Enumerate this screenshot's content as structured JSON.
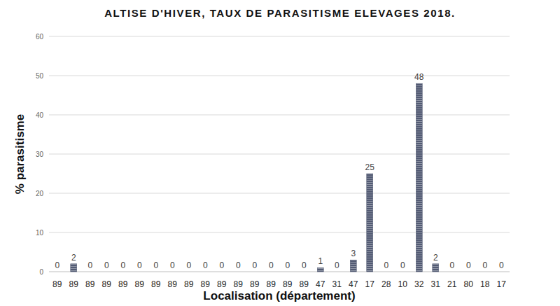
{
  "chart_data": {
    "type": "bar",
    "title": "ALTISE D'HIVER, TAUX DE PARASITISME ELEVAGES 2018.",
    "x_label": "Localisation (département)",
    "y_label": "% parasitisme",
    "categories": [
      "89",
      "89",
      "89",
      "89",
      "89",
      "89",
      "89",
      "89",
      "89",
      "89",
      "89",
      "89",
      "89",
      "89",
      "89",
      "89",
      "47",
      "31",
      "47",
      "17",
      "28",
      "10",
      "32",
      "31",
      "21",
      "80",
      "18",
      "17"
    ],
    "values": [
      0,
      2,
      0,
      0,
      0,
      0,
      0,
      0,
      0,
      0,
      0,
      0,
      0,
      0,
      0,
      0,
      1,
      0,
      3,
      25,
      0,
      0,
      48,
      2,
      0,
      0,
      0,
      0
    ],
    "color": "#525a73",
    "ylim": [
      0,
      60
    ],
    "yticks": [
      0,
      10,
      20,
      30,
      40,
      50,
      60
    ],
    "grid": true,
    "data_labels": true
  }
}
